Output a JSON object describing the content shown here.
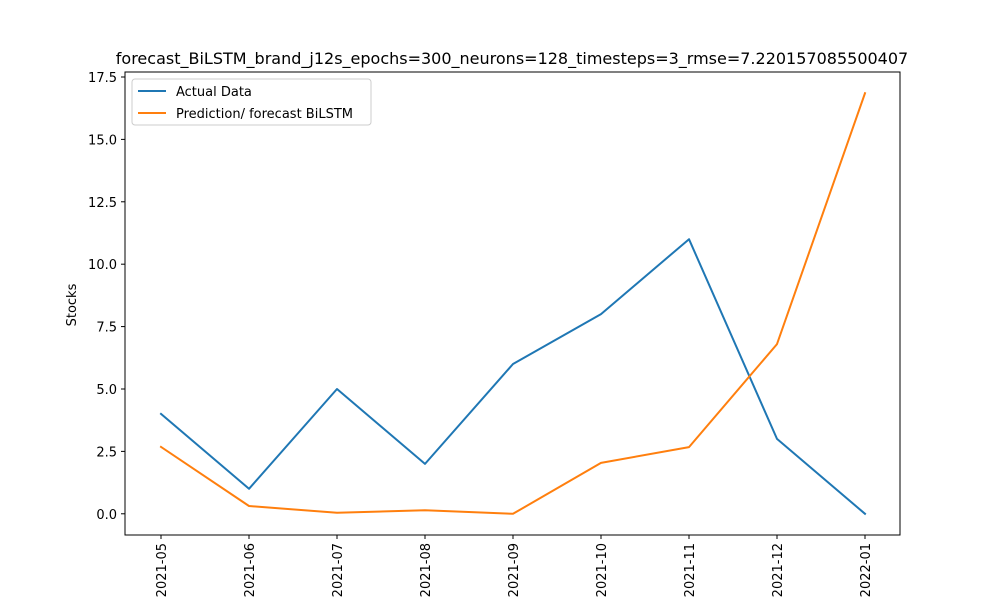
{
  "chart_data": {
    "type": "line",
    "title": "forecast_BiLSTM_brand_j12s_epochs=300_neurons=128_timesteps=3_rmse=7.220157085500407",
    "xlabel": "",
    "ylabel": "Stocks",
    "categories": [
      "2021-05",
      "2021-06",
      "2021-07",
      "2021-08",
      "2021-09",
      "2021-10",
      "2021-11",
      "2021-12",
      "2022-01"
    ],
    "yticks": [
      "0.0",
      "2.5",
      "5.0",
      "7.5",
      "10.0",
      "12.5",
      "15.0",
      "17.5"
    ],
    "ylim": [
      -0.85,
      17.7
    ],
    "grid": false,
    "legend_position": "upper-left",
    "series": [
      {
        "name": "Actual Data",
        "color": "#1f77b4",
        "values": [
          4.0,
          1.0,
          5.0,
          2.0,
          6.0,
          8.0,
          11.0,
          3.0,
          0.0
        ]
      },
      {
        "name": "Prediction/ forecast BiLSTM",
        "color": "#ff7f0e",
        "values": [
          2.68,
          0.31,
          0.04,
          0.14,
          0.0,
          2.04,
          2.67,
          6.8,
          16.85
        ]
      }
    ]
  }
}
